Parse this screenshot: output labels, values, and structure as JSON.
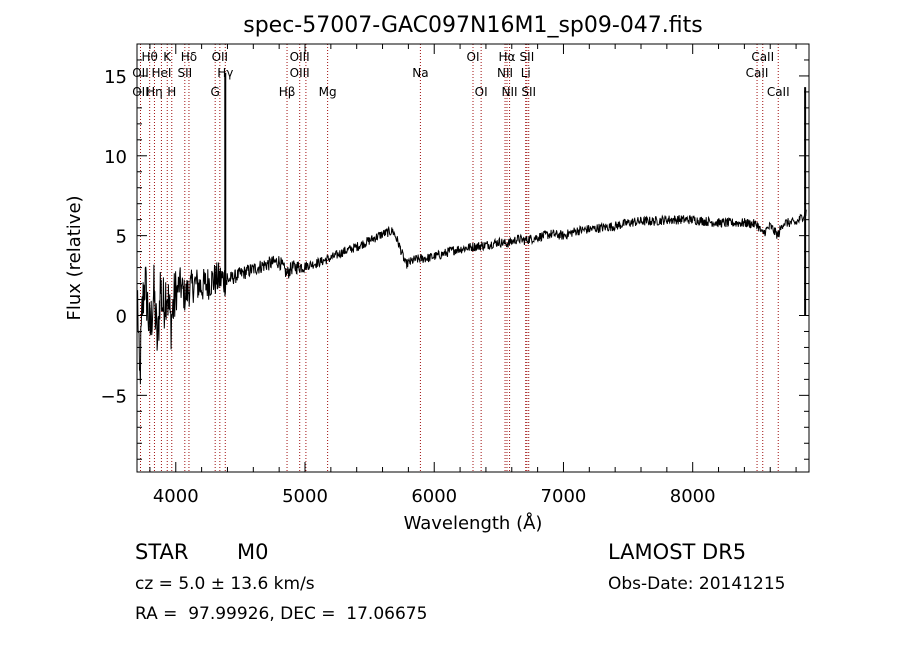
{
  "chart_data": {
    "type": "line",
    "title": "spec-57007-GAC097N16M1_sp09-047.fits",
    "xlabel": "Wavelength (Å)",
    "ylabel": "Flux (relative)",
    "xlim": [
      3700,
      8900
    ],
    "ylim": [
      -9.8,
      17.0
    ],
    "xticks": [
      4000,
      5000,
      6000,
      7000,
      8000
    ],
    "xtick_labels": [
      "4000",
      "5000",
      "6000",
      "7000",
      "8000"
    ],
    "yticks": [
      -5,
      0,
      5,
      10,
      15
    ],
    "ytick_labels": [
      "−5",
      "0",
      "5",
      "10",
      "15"
    ],
    "grid": false,
    "series_color": "#000000",
    "line_marker_color": "#a01010",
    "spectrum_anchors": [
      [
        3705,
        1.0
      ],
      [
        3720,
        -4.5
      ],
      [
        3740,
        0.3
      ],
      [
        3760,
        2.2
      ],
      [
        3780,
        0.8
      ],
      [
        3800,
        -1.2
      ],
      [
        3830,
        1.5
      ],
      [
        3860,
        -2.0
      ],
      [
        3880,
        2.0
      ],
      [
        3900,
        0.5
      ],
      [
        3930,
        1.8
      ],
      [
        3960,
        -0.5
      ],
      [
        3990,
        1.0
      ],
      [
        4030,
        2.0
      ],
      [
        4070,
        1.2
      ],
      [
        4100,
        1.6
      ],
      [
        4150,
        2.0
      ],
      [
        4200,
        1.8
      ],
      [
        4280,
        2.2
      ],
      [
        4350,
        2.3
      ],
      [
        4400,
        2.2
      ],
      [
        4500,
        2.6
      ],
      [
        4600,
        2.9
      ],
      [
        4700,
        3.2
      ],
      [
        4800,
        3.4
      ],
      [
        4860,
        2.6
      ],
      [
        4900,
        3.0
      ],
      [
        5000,
        3.1
      ],
      [
        5100,
        3.3
      ],
      [
        5200,
        3.6
      ],
      [
        5300,
        4.0
      ],
      [
        5400,
        4.3
      ],
      [
        5500,
        4.7
      ],
      [
        5600,
        5.1
      ],
      [
        5680,
        5.3
      ],
      [
        5720,
        4.6
      ],
      [
        5780,
        3.2
      ],
      [
        5850,
        3.5
      ],
      [
        5950,
        3.6
      ],
      [
        6050,
        3.8
      ],
      [
        6150,
        4.1
      ],
      [
        6300,
        4.3
      ],
      [
        6400,
        4.4
      ],
      [
        6500,
        4.6
      ],
      [
        6563,
        4.5
      ],
      [
        6650,
        4.8
      ],
      [
        6700,
        4.7
      ],
      [
        6800,
        4.9
      ],
      [
        6900,
        5.1
      ],
      [
        7000,
        5.0
      ],
      [
        7100,
        5.3
      ],
      [
        7200,
        5.4
      ],
      [
        7300,
        5.5
      ],
      [
        7400,
        5.6
      ],
      [
        7500,
        5.8
      ],
      [
        7600,
        5.9
      ],
      [
        7700,
        5.9
      ],
      [
        7800,
        6.0
      ],
      [
        7900,
        6.0
      ],
      [
        8000,
        6.0
      ],
      [
        8100,
        5.9
      ],
      [
        8200,
        5.8
      ],
      [
        8300,
        5.8
      ],
      [
        8400,
        5.8
      ],
      [
        8500,
        5.7
      ],
      [
        8540,
        5.1
      ],
      [
        8600,
        5.6
      ],
      [
        8660,
        5.0
      ],
      [
        8700,
        5.8
      ],
      [
        8800,
        5.8
      ],
      [
        8850,
        6.2
      ],
      [
        8880,
        6.5
      ]
    ],
    "spike": {
      "x": 4383,
      "ymin": 2.0,
      "ymax": 15.2
    },
    "spike_right": {
      "x": 8870,
      "ymin": 0.0,
      "ymax": 14.3
    },
    "lines": [
      {
        "label": "Hθ",
        "wave": 3798,
        "row": 1
      },
      {
        "label": "K",
        "wave": 3934,
        "row": 1
      },
      {
        "label": "Hδ",
        "wave": 4102,
        "row": 1
      },
      {
        "label": "OII",
        "wave": 4341,
        "row": 1
      },
      {
        "label": "OIII",
        "wave": 4959,
        "row": 1
      },
      {
        "label": "OI",
        "wave": 6300,
        "row": 1
      },
      {
        "label": "Hα",
        "wave": 6563,
        "row": 1
      },
      {
        "label": "SII",
        "wave": 6717,
        "row": 1
      },
      {
        "label": "CaII",
        "wave": 8542,
        "row": 1
      },
      {
        "label": "OII",
        "wave": 3727,
        "row": 2
      },
      {
        "label": "HeI",
        "wave": 3889,
        "row": 2
      },
      {
        "label": "SII",
        "wave": 4070,
        "row": 2
      },
      {
        "label": "Hγ",
        "wave": 4383,
        "row": 2
      },
      {
        "label": "OIII",
        "wave": 4959,
        "row": 2
      },
      {
        "label": "NII",
        "wave": 6548,
        "row": 2
      },
      {
        "label": "Li",
        "wave": 6708,
        "row": 2
      },
      {
        "label": "CaII",
        "wave": 8498,
        "row": 2
      },
      {
        "label": "OII",
        "wave": 3727,
        "row": 3
      },
      {
        "label": "Hη",
        "wave": 3835,
        "row": 3
      },
      {
        "label": "H",
        "wave": 3969,
        "row": 3
      },
      {
        "label": "G",
        "wave": 4305,
        "row": 3
      },
      {
        "label": "Hβ",
        "wave": 4861,
        "row": 3
      },
      {
        "label": "Mg",
        "wave": 5175,
        "row": 3
      },
      {
        "label": "Na",
        "wave": 5893,
        "row": 2
      },
      {
        "label": "OI",
        "wave": 6363,
        "row": 3
      },
      {
        "label": "NII",
        "wave": 6583,
        "row": 3
      },
      {
        "label": "SII",
        "wave": 6731,
        "row": 3
      },
      {
        "label": "CaII",
        "wave": 8662,
        "row": 3
      }
    ],
    "marker_waves": [
      3727,
      3798,
      3835,
      3889,
      3934,
      3969,
      4070,
      4102,
      4305,
      4341,
      4383,
      4861,
      4959,
      5007,
      5175,
      5893,
      6300,
      6363,
      6548,
      6563,
      6583,
      6708,
      6717,
      6731,
      8498,
      8542,
      8662
    ]
  },
  "info": {
    "object_class": "STAR",
    "subclass": "M0",
    "survey": "LAMOST DR5",
    "cz": "cz = 5.0 ± 13.6 km/s",
    "obs_date": "Obs-Date: 20141215",
    "coords": "RA =  97.99926, DEC =  17.06675"
  }
}
